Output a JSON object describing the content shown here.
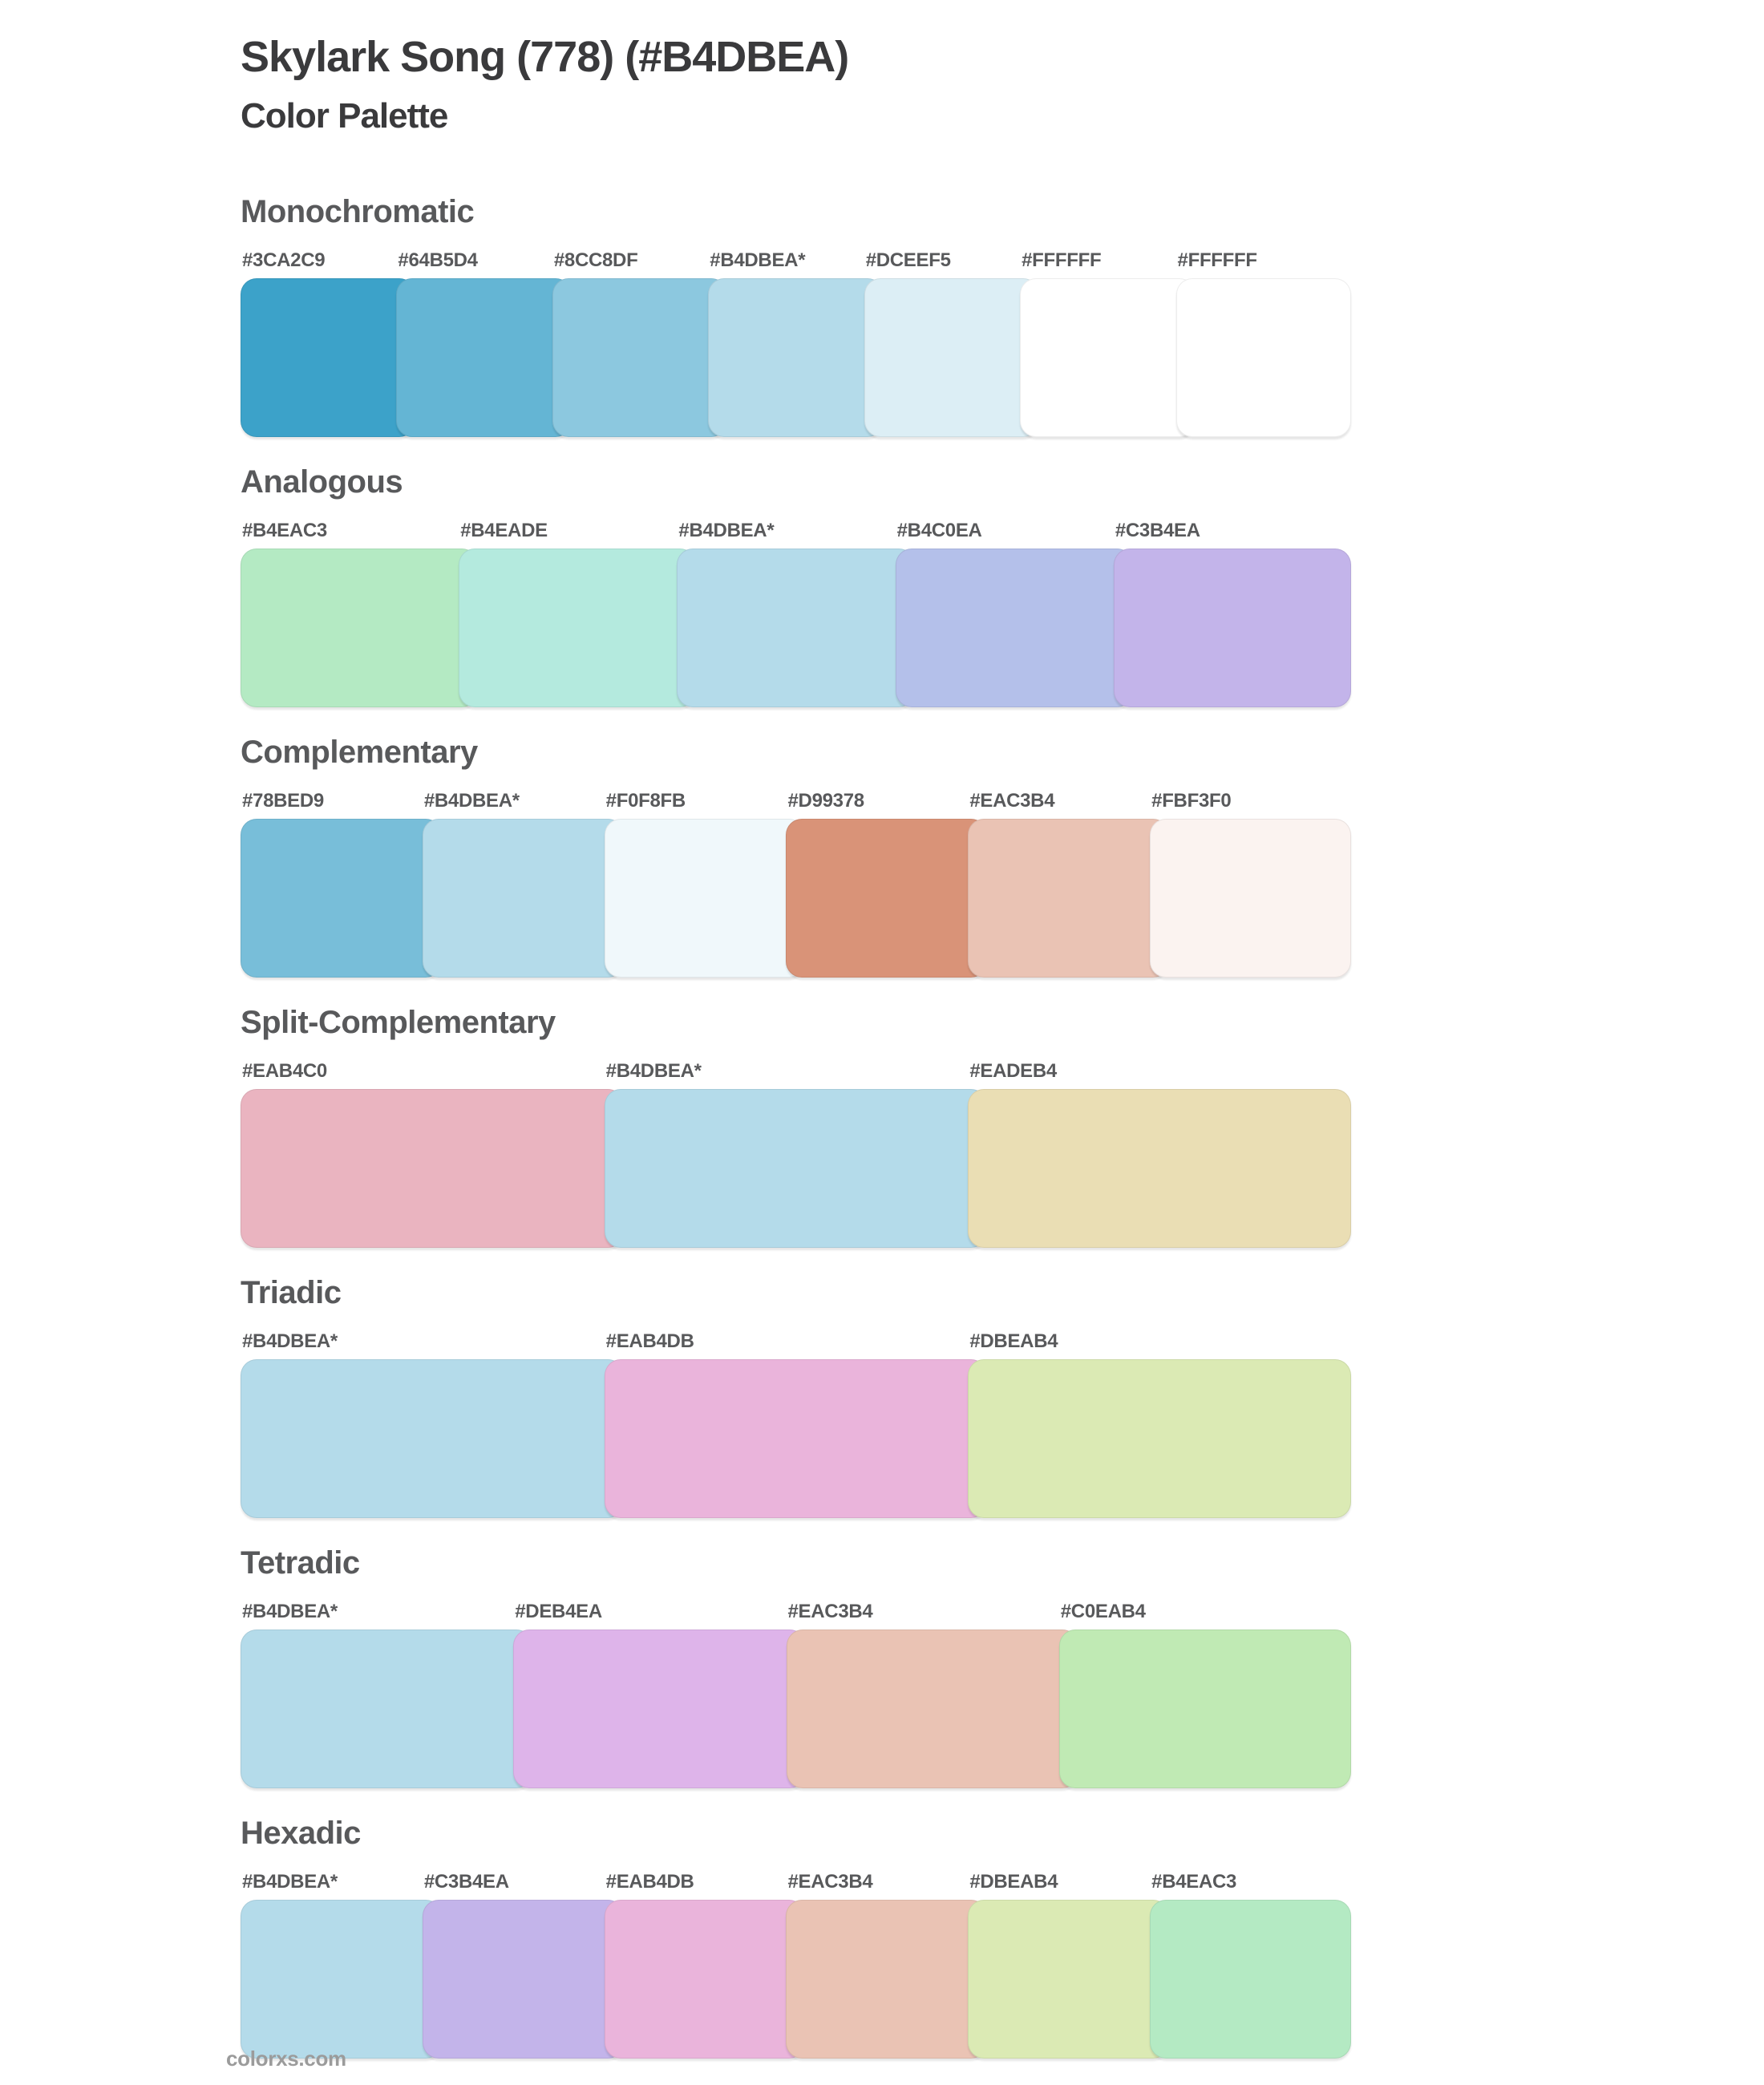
{
  "page": {
    "title": "Skylark Song (778) (#B4DBEA)",
    "subtitle": "Color Palette",
    "base_color_name": "Skylark Song (778)",
    "base_color_hex": "#B4DBEA",
    "footer": "colorxs.com"
  },
  "sections": [
    {
      "name": "Monochromatic",
      "swatches": [
        {
          "label": "#3CA2C9",
          "color": "#3CA2C9"
        },
        {
          "label": "#64B5D4",
          "color": "#64B5D4"
        },
        {
          "label": "#8CC8DF",
          "color": "#8CC8DF"
        },
        {
          "label": "#B4DBEA*",
          "color": "#B4DBEA"
        },
        {
          "label": "#DCEEF5",
          "color": "#DCEEF5"
        },
        {
          "label": "#FFFFFF",
          "color": "#FFFFFF"
        },
        {
          "label": "#FFFFFF",
          "color": "#FFFFFF"
        }
      ]
    },
    {
      "name": "Analogous",
      "swatches": [
        {
          "label": "#B4EAC3",
          "color": "#B4EAC3"
        },
        {
          "label": "#B4EADE",
          "color": "#B4EADE"
        },
        {
          "label": "#B4DBEA*",
          "color": "#B4DBEA"
        },
        {
          "label": "#B4C0EA",
          "color": "#B4C0EA"
        },
        {
          "label": "#C3B4EA",
          "color": "#C3B4EA"
        }
      ]
    },
    {
      "name": "Complementary",
      "swatches": [
        {
          "label": "#78BED9",
          "color": "#78BED9"
        },
        {
          "label": "#B4DBEA*",
          "color": "#B4DBEA"
        },
        {
          "label": "#F0F8FB",
          "color": "#F0F8FB"
        },
        {
          "label": "#D99378",
          "color": "#D99378"
        },
        {
          "label": "#EAC3B4",
          "color": "#EAC3B4"
        },
        {
          "label": "#FBF3F0",
          "color": "#FBF3F0"
        }
      ]
    },
    {
      "name": "Split-Complementary",
      "swatches": [
        {
          "label": "#EAB4C0",
          "color": "#EAB4C0"
        },
        {
          "label": "#B4DBEA*",
          "color": "#B4DBEA"
        },
        {
          "label": "#EADEB4",
          "color": "#EADEB4"
        }
      ]
    },
    {
      "name": "Triadic",
      "swatches": [
        {
          "label": "#B4DBEA*",
          "color": "#B4DBEA"
        },
        {
          "label": "#EAB4DB",
          "color": "#EAB4DB"
        },
        {
          "label": "#DBEAB4",
          "color": "#DBEAB4"
        }
      ]
    },
    {
      "name": "Tetradic",
      "swatches": [
        {
          "label": "#B4DBEA*",
          "color": "#B4DBEA"
        },
        {
          "label": "#DEB4EA",
          "color": "#DEB4EA"
        },
        {
          "label": "#EAC3B4",
          "color": "#EAC3B4"
        },
        {
          "label": "#C0EAB4",
          "color": "#C0EAB4"
        }
      ]
    },
    {
      "name": "Hexadic",
      "swatches": [
        {
          "label": "#B4DBEA*",
          "color": "#B4DBEA"
        },
        {
          "label": "#C3B4EA",
          "color": "#C3B4EA"
        },
        {
          "label": "#EAB4DB",
          "color": "#EAB4DB"
        },
        {
          "label": "#EAC3B4",
          "color": "#EAC3B4"
        },
        {
          "label": "#DBEAB4",
          "color": "#DBEAB4"
        },
        {
          "label": "#B4EAC3",
          "color": "#B4EAC3"
        }
      ]
    }
  ]
}
